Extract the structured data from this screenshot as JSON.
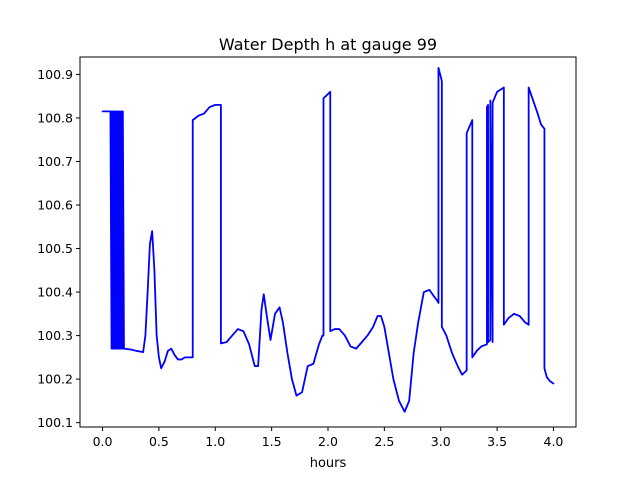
{
  "chart_data": {
    "type": "line",
    "title": "Water Depth h at gauge 99",
    "xlabel": "hours",
    "ylabel": "",
    "xlim": [
      -0.2,
      4.2
    ],
    "ylim": [
      100.09,
      100.94
    ],
    "xticks": [
      0.0,
      0.5,
      1.0,
      1.5,
      2.0,
      2.5,
      3.0,
      3.5,
      4.0
    ],
    "xtick_labels": [
      "0.0",
      "0.5",
      "1.0",
      "1.5",
      "2.0",
      "2.5",
      "3.0",
      "3.5",
      "4.0"
    ],
    "yticks": [
      100.1,
      100.2,
      100.3,
      100.4,
      100.5,
      100.6,
      100.7,
      100.8,
      100.9
    ],
    "ytick_labels": [
      "100.1",
      "100.2",
      "100.3",
      "100.4",
      "100.5",
      "100.6",
      "100.7",
      "100.8",
      "100.9"
    ],
    "grid": false,
    "series": [
      {
        "color": "#0000ff",
        "x": [
          0.0,
          0.07,
          0.08,
          0.08,
          0.09,
          0.09,
          0.1,
          0.1,
          0.11,
          0.11,
          0.12,
          0.12,
          0.13,
          0.13,
          0.14,
          0.14,
          0.15,
          0.15,
          0.16,
          0.16,
          0.17,
          0.17,
          0.18,
          0.18,
          0.19,
          0.19,
          0.25,
          0.3,
          0.36,
          0.38,
          0.4,
          0.42,
          0.44,
          0.46,
          0.48,
          0.5,
          0.52,
          0.55,
          0.58,
          0.61,
          0.64,
          0.67,
          0.7,
          0.73,
          0.76,
          0.8,
          0.8,
          0.85,
          0.9,
          0.95,
          1.0,
          1.05,
          1.05,
          1.1,
          1.15,
          1.2,
          1.25,
          1.3,
          1.35,
          1.38,
          1.41,
          1.43,
          1.46,
          1.49,
          1.53,
          1.57,
          1.6,
          1.64,
          1.68,
          1.72,
          1.77,
          1.82,
          1.87,
          1.92,
          1.95,
          1.96,
          1.96,
          2.02,
          2.02,
          2.06,
          2.1,
          2.15,
          2.2,
          2.25,
          2.3,
          2.35,
          2.4,
          2.44,
          2.47,
          2.5,
          2.54,
          2.58,
          2.63,
          2.68,
          2.72,
          2.76,
          2.8,
          2.85,
          2.9,
          2.94,
          2.97,
          2.98,
          2.98,
          3.01,
          3.01,
          3.05,
          3.1,
          3.15,
          3.19,
          3.23,
          3.23,
          3.28,
          3.28,
          3.32,
          3.36,
          3.41,
          3.41,
          3.42,
          3.42,
          3.44,
          3.44,
          3.46,
          3.46,
          3.5,
          3.56,
          3.56,
          3.6,
          3.65,
          3.7,
          3.75,
          3.78,
          3.78,
          3.82,
          3.86,
          3.89,
          3.92,
          3.92,
          3.94,
          3.97,
          4.0
        ],
        "y": [
          100.815,
          100.815,
          100.27,
          100.815,
          100.27,
          100.815,
          100.27,
          100.815,
          100.27,
          100.815,
          100.27,
          100.815,
          100.27,
          100.815,
          100.27,
          100.815,
          100.27,
          100.815,
          100.27,
          100.815,
          100.27,
          100.815,
          100.27,
          100.815,
          100.27,
          100.27,
          100.268,
          100.265,
          100.262,
          100.3,
          100.4,
          100.51,
          100.54,
          100.45,
          100.3,
          100.25,
          100.225,
          100.24,
          100.265,
          100.27,
          100.255,
          100.245,
          100.245,
          100.25,
          100.25,
          100.25,
          100.795,
          100.805,
          100.81,
          100.825,
          100.83,
          100.83,
          100.282,
          100.285,
          100.3,
          100.315,
          100.31,
          100.28,
          100.23,
          100.23,
          100.36,
          100.395,
          100.34,
          100.29,
          100.35,
          100.365,
          100.33,
          100.26,
          100.2,
          100.162,
          100.17,
          100.23,
          100.235,
          100.28,
          100.3,
          100.3,
          100.845,
          100.86,
          100.31,
          100.315,
          100.315,
          100.3,
          100.275,
          100.27,
          100.285,
          100.3,
          100.32,
          100.345,
          100.345,
          100.32,
          100.26,
          100.2,
          100.15,
          100.125,
          100.15,
          100.26,
          100.33,
          100.4,
          100.405,
          100.39,
          100.38,
          100.375,
          100.915,
          100.885,
          100.32,
          100.3,
          100.26,
          100.23,
          100.21,
          100.22,
          100.765,
          100.795,
          100.25,
          100.265,
          100.275,
          100.28,
          100.825,
          100.83,
          100.285,
          100.29,
          100.84,
          100.285,
          100.835,
          100.86,
          100.87,
          100.325,
          100.34,
          100.35,
          100.345,
          100.33,
          100.325,
          100.87,
          100.84,
          100.81,
          100.785,
          100.775,
          100.225,
          100.205,
          100.195,
          100.19
        ]
      }
    ]
  }
}
